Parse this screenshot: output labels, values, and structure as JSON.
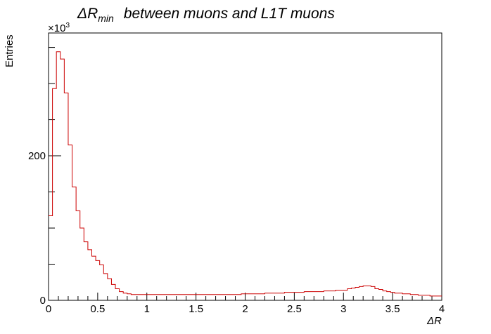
{
  "chart_data": {
    "type": "histogram",
    "title_main": "ΔR",
    "title_sub": "min",
    "title_rest": "between   muons   and   L1T   muons",
    "xlabel": "ΔR",
    "ylabel": "Entries",
    "y_multiplier": "×10",
    "y_multiplier_exp": "3",
    "xlim": [
      0,
      4
    ],
    "ylim": [
      0,
      370
    ],
    "x_ticks": [
      {
        "value": 0,
        "label": "0"
      },
      {
        "value": 0.5,
        "label": "0.5"
      },
      {
        "value": 1,
        "label": "1"
      },
      {
        "value": 1.5,
        "label": "1.5"
      },
      {
        "value": 2,
        "label": "2"
      },
      {
        "value": 2.5,
        "label": "2.5"
      },
      {
        "value": 3,
        "label": "3"
      },
      {
        "value": 3.5,
        "label": "3.5"
      },
      {
        "value": 4,
        "label": "4"
      }
    ],
    "y_ticks": [
      {
        "value": 0,
        "label": "0"
      },
      {
        "value": 200,
        "label": "200"
      }
    ],
    "y_minor_ticks": [
      50,
      100,
      150,
      250,
      300,
      350
    ],
    "series": [
      {
        "color": "#cc0000",
        "bin_width": 0.04,
        "bin_start": 0,
        "values": [
          117,
          293,
          344,
          334,
          287,
          215,
          157,
          124,
          100,
          81,
          70,
          61,
          55,
          49,
          37,
          30,
          22,
          16,
          12,
          10,
          9,
          8,
          8,
          8,
          8,
          8,
          8,
          8,
          8,
          8,
          8,
          8,
          8,
          8,
          8,
          8,
          8,
          8,
          8,
          8,
          8,
          8,
          8,
          8,
          8,
          8,
          8,
          8,
          8,
          9,
          9,
          9,
          9,
          9,
          9,
          10,
          10,
          10,
          10,
          10,
          11,
          11,
          11,
          11,
          11,
          12,
          12,
          12,
          12,
          12,
          13,
          13,
          13,
          14,
          14,
          14,
          16,
          17,
          18,
          19,
          20,
          20,
          19,
          16,
          15,
          13,
          12,
          11,
          10,
          10,
          9,
          9,
          8,
          8,
          7,
          7,
          7,
          6,
          6,
          6
        ]
      }
    ]
  }
}
